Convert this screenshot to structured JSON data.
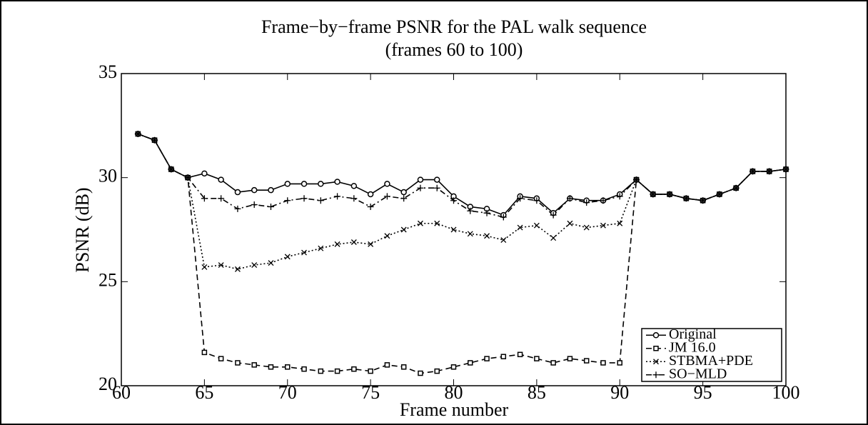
{
  "chart_data": {
    "type": "line",
    "title": [
      "Frame−by−frame PSNR for the PAL walk sequence",
      "(frames 60 to 100)"
    ],
    "xlabel": "Frame number",
    "ylabel": "PSNR (dB)",
    "x": [
      61,
      62,
      63,
      64,
      65,
      66,
      67,
      68,
      69,
      70,
      71,
      72,
      73,
      74,
      75,
      76,
      77,
      78,
      79,
      80,
      81,
      82,
      83,
      84,
      85,
      86,
      87,
      88,
      89,
      90,
      91,
      92,
      93,
      94,
      95,
      96,
      97,
      98,
      99,
      100
    ],
    "xlim": [
      60,
      100
    ],
    "xticks": [
      60,
      65,
      70,
      75,
      80,
      85,
      90,
      95,
      100
    ],
    "ylim": [
      20,
      35
    ],
    "yticks": [
      20,
      25,
      30,
      35
    ],
    "legend": "lower right",
    "series": [
      {
        "name": "Original",
        "color": "#000000",
        "marker": "circle",
        "dash": "solid",
        "values": [
          32.1,
          31.8,
          30.4,
          30.0,
          30.2,
          29.9,
          29.3,
          29.4,
          29.4,
          29.7,
          29.7,
          29.7,
          29.8,
          29.6,
          29.2,
          29.7,
          29.3,
          29.9,
          29.9,
          29.1,
          28.6,
          28.5,
          28.2,
          29.1,
          29.0,
          28.3,
          29.0,
          28.9,
          28.9,
          29.2,
          29.9,
          29.2,
          29.2,
          29.0,
          28.9,
          29.2,
          29.5,
          30.3,
          30.3,
          30.4
        ]
      },
      {
        "name": "JM 16.0",
        "color": "#000000",
        "marker": "square",
        "dash": "dashed",
        "values": [
          32.1,
          31.8,
          30.4,
          30.0,
          21.6,
          21.3,
          21.1,
          21.0,
          20.9,
          20.9,
          20.8,
          20.7,
          20.7,
          20.8,
          20.7,
          21.0,
          20.9,
          20.6,
          20.7,
          20.9,
          21.1,
          21.3,
          21.4,
          21.5,
          21.3,
          21.1,
          21.3,
          21.2,
          21.1,
          21.1,
          29.9,
          29.2,
          29.2,
          29.0,
          28.9,
          29.2,
          29.5,
          30.3,
          30.3,
          30.4
        ]
      },
      {
        "name": "STBMA+PDE",
        "color": "#000000",
        "marker": "x",
        "dash": "dotted",
        "values": [
          32.1,
          31.8,
          30.4,
          30.0,
          25.7,
          25.8,
          25.6,
          25.8,
          25.9,
          26.2,
          26.4,
          26.6,
          26.8,
          26.9,
          26.8,
          27.2,
          27.5,
          27.8,
          27.8,
          27.5,
          27.3,
          27.2,
          27.0,
          27.6,
          27.7,
          27.1,
          27.8,
          27.6,
          27.7,
          27.8,
          29.9,
          29.2,
          29.2,
          29.0,
          28.9,
          29.2,
          29.5,
          30.3,
          30.3,
          30.4
        ]
      },
      {
        "name": "SO−MLD",
        "color": "#000000",
        "marker": "plus",
        "dash": "dashdot",
        "values": [
          32.1,
          31.8,
          30.4,
          30.0,
          29.0,
          29.0,
          28.5,
          28.7,
          28.6,
          28.9,
          29.0,
          28.9,
          29.1,
          29.0,
          28.6,
          29.1,
          29.0,
          29.5,
          29.5,
          28.9,
          28.4,
          28.3,
          28.1,
          29.0,
          28.9,
          28.2,
          29.0,
          28.8,
          28.9,
          29.1,
          29.9,
          29.2,
          29.2,
          29.0,
          28.9,
          29.2,
          29.5,
          30.3,
          30.3,
          30.4
        ]
      }
    ]
  }
}
